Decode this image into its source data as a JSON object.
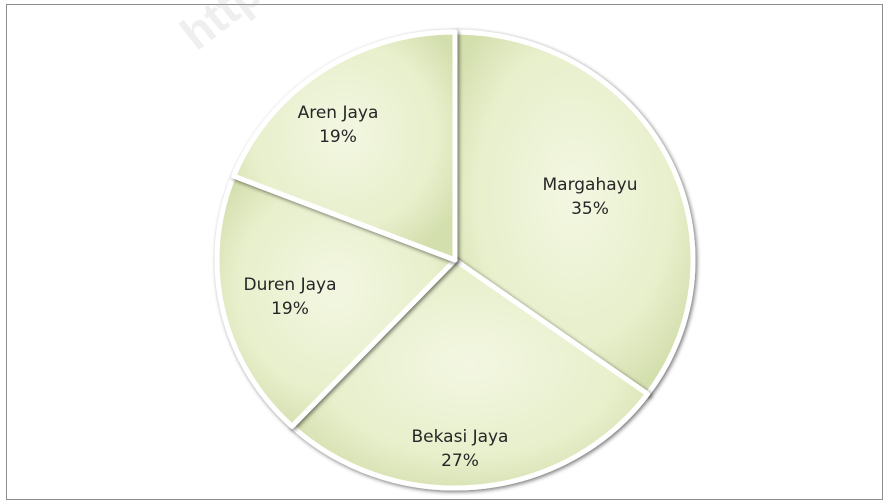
{
  "chart_data": {
    "type": "pie",
    "title": "",
    "categories": [
      "Margahayu",
      "Bekasi Jaya",
      "Duren Jaya",
      "Aren Jaya"
    ],
    "values": [
      35,
      27,
      19,
      19
    ],
    "labels": [
      {
        "name": "Margahayu",
        "pct": "35%"
      },
      {
        "name": "Bekasi Jaya",
        "pct": "27%"
      },
      {
        "name": "Duren Jaya",
        "pct": "19%"
      },
      {
        "name": "Aren Jaya",
        "pct": "19%"
      }
    ],
    "legend": "none",
    "slice_color": "#e7efcb",
    "edge_color": "#5b5b4f",
    "gap_color": "#ffffff"
  },
  "watermark": "http://"
}
